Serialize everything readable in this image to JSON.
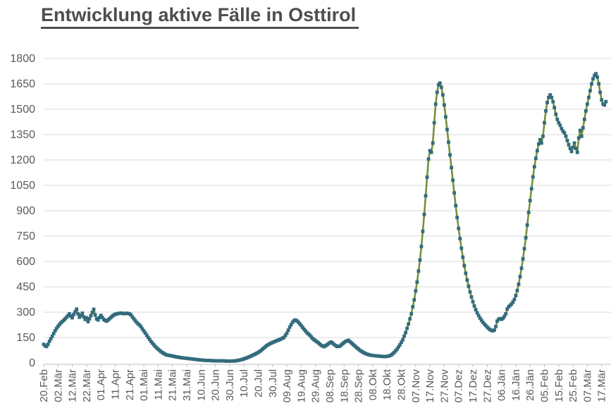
{
  "chart_data": {
    "type": "line",
    "title": "Entwicklung aktive Fälle in Osttirol",
    "title_color": "#4e4e4e",
    "legend_position": "none",
    "grid": "horizontal",
    "gridline_color": "#d9d9d9",
    "axis_line_color": "#bfbfbf",
    "axis_label_color": "#595959",
    "ylim": [
      0,
      1800
    ],
    "y_ticks": [
      0,
      150,
      300,
      450,
      600,
      750,
      900,
      1050,
      1200,
      1350,
      1500,
      1650,
      1800
    ],
    "x_tick_interval_days": 10,
    "x_tick_labels": [
      "20.Feb",
      "02.Mär",
      "12.Mär",
      "22.Mär",
      "01.Apr",
      "11.Apr",
      "21.Apr",
      "01.Mai",
      "11.Mai",
      "21.Mai",
      "31.Mai",
      "10.Jun",
      "20.Jun",
      "30.Jun",
      "10.Jul",
      "20.Jul",
      "30.Jul",
      "09.Aug",
      "19.Aug",
      "29.Aug",
      "08.Sep",
      "18.Sep",
      "28.Sep",
      "08.Okt",
      "18.Okt",
      "28.Okt",
      "07.Nov",
      "17.Nov",
      "27.Nov",
      "07.Dez",
      "17.Dez",
      "27.Dez",
      "06.Jän",
      "16.Jän",
      "26.Jän",
      "05.Feb",
      "15.Feb",
      "25.Feb",
      "07.Mär",
      "17.Mär"
    ],
    "series": [
      {
        "marker": "square",
        "marker_color": "#336b7d",
        "line_color": "#74923b",
        "points_day_value": [
          [
            0,
            110
          ],
          [
            1,
            101
          ],
          [
            2,
            97
          ],
          [
            3,
            110
          ],
          [
            4,
            128
          ],
          [
            5,
            143
          ],
          [
            6,
            158
          ],
          [
            7,
            174
          ],
          [
            8,
            190
          ],
          [
            9,
            204
          ],
          [
            10,
            216
          ],
          [
            11,
            227
          ],
          [
            12,
            237
          ],
          [
            13,
            245
          ],
          [
            14,
            252
          ],
          [
            15,
            261
          ],
          [
            16,
            270
          ],
          [
            17,
            280
          ],
          [
            18,
            290
          ],
          [
            19,
            277
          ],
          [
            20,
            267
          ],
          [
            21,
            287
          ],
          [
            22,
            303
          ],
          [
            23,
            318
          ],
          [
            24,
            290
          ],
          [
            25,
            270
          ],
          [
            26,
            281
          ],
          [
            27,
            294
          ],
          [
            28,
            272
          ],
          [
            29,
            257
          ],
          [
            30,
            267
          ],
          [
            31,
            244
          ],
          [
            32,
            261
          ],
          [
            33,
            280
          ],
          [
            34,
            299
          ],
          [
            35,
            317
          ],
          [
            36,
            284
          ],
          [
            37,
            261
          ],
          [
            38,
            254
          ],
          [
            39,
            269
          ],
          [
            40,
            281
          ],
          [
            41,
            269
          ],
          [
            42,
            257
          ],
          [
            43,
            251
          ],
          [
            44,
            247
          ],
          [
            45,
            254
          ],
          [
            46,
            261
          ],
          [
            47,
            269
          ],
          [
            48,
            277
          ],
          [
            49,
            283
          ],
          [
            50,
            287
          ],
          [
            51,
            290
          ],
          [
            52,
            292
          ],
          [
            54,
            295
          ],
          [
            56,
            291
          ],
          [
            58,
            294
          ],
          [
            60,
            290
          ],
          [
            61,
            284
          ],
          [
            62,
            272
          ],
          [
            63,
            261
          ],
          [
            64,
            250
          ],
          [
            65,
            240
          ],
          [
            66,
            231
          ],
          [
            67,
            224
          ],
          [
            68,
            214
          ],
          [
            69,
            201
          ],
          [
            70,
            189
          ],
          [
            71,
            177
          ],
          [
            72,
            164
          ],
          [
            73,
            151
          ],
          [
            74,
            139
          ],
          [
            75,
            127
          ],
          [
            76,
            117
          ],
          [
            77,
            107
          ],
          [
            78,
            97
          ],
          [
            79,
            89
          ],
          [
            80,
            81
          ],
          [
            81,
            74
          ],
          [
            82,
            67
          ],
          [
            83,
            61
          ],
          [
            84,
            56
          ],
          [
            85,
            51
          ],
          [
            86,
            47
          ],
          [
            88,
            44
          ],
          [
            90,
            41
          ],
          [
            92,
            37
          ],
          [
            94,
            34
          ],
          [
            96,
            31
          ],
          [
            98,
            29
          ],
          [
            100,
            27
          ],
          [
            102,
            25
          ],
          [
            104,
            23
          ],
          [
            106,
            21
          ],
          [
            108,
            19
          ],
          [
            110,
            17
          ],
          [
            113,
            15
          ],
          [
            116,
            14
          ],
          [
            119,
            13
          ],
          [
            122,
            12
          ],
          [
            125,
            12
          ],
          [
            128,
            11
          ],
          [
            131,
            11
          ],
          [
            134,
            12
          ],
          [
            136,
            15
          ],
          [
            138,
            19
          ],
          [
            140,
            24
          ],
          [
            142,
            30
          ],
          [
            144,
            37
          ],
          [
            146,
            45
          ],
          [
            148,
            53
          ],
          [
            150,
            62
          ],
          [
            152,
            74
          ],
          [
            154,
            89
          ],
          [
            156,
            103
          ],
          [
            158,
            113
          ],
          [
            160,
            121
          ],
          [
            162,
            128
          ],
          [
            164,
            135
          ],
          [
            166,
            142
          ],
          [
            168,
            151
          ],
          [
            170,
            176
          ],
          [
            172,
            212
          ],
          [
            174,
            241
          ],
          [
            175,
            250
          ],
          [
            176,
            254
          ],
          [
            177,
            249
          ],
          [
            178,
            241
          ],
          [
            180,
            221
          ],
          [
            182,
            199
          ],
          [
            184,
            179
          ],
          [
            186,
            164
          ],
          [
            188,
            144
          ],
          [
            190,
            131
          ],
          [
            192,
            119
          ],
          [
            194,
            104
          ],
          [
            196,
            96
          ],
          [
            198,
            107
          ],
          [
            200,
            119
          ],
          [
            201,
            124
          ],
          [
            203,
            109
          ],
          [
            205,
            97
          ],
          [
            207,
            99
          ],
          [
            209,
            114
          ],
          [
            211,
            127
          ],
          [
            213,
            134
          ],
          [
            215,
            119
          ],
          [
            217,
            104
          ],
          [
            219,
            89
          ],
          [
            221,
            75
          ],
          [
            223,
            64
          ],
          [
            225,
            55
          ],
          [
            227,
            49
          ],
          [
            229,
            45
          ],
          [
            231,
            43
          ],
          [
            233,
            41
          ],
          [
            235,
            40
          ],
          [
            237,
            38
          ],
          [
            239,
            38
          ],
          [
            241,
            40
          ],
          [
            243,
            47
          ],
          [
            245,
            62
          ],
          [
            247,
            81
          ],
          [
            249,
            107
          ],
          [
            251,
            137
          ],
          [
            253,
            179
          ],
          [
            255,
            230
          ],
          [
            257,
            291
          ],
          [
            259,
            373
          ],
          [
            261,
            478
          ],
          [
            263,
            608
          ],
          [
            264,
            688
          ],
          [
            265,
            778
          ],
          [
            266,
            878
          ],
          [
            267,
            988
          ],
          [
            268,
            1098
          ],
          [
            269,
            1205
          ],
          [
            270,
            1255
          ],
          [
            271,
            1245
          ],
          [
            272,
            1300
          ],
          [
            273,
            1420
          ],
          [
            274,
            1530
          ],
          [
            275,
            1600
          ],
          [
            276,
            1645
          ],
          [
            277,
            1655
          ],
          [
            278,
            1630
          ],
          [
            279,
            1585
          ],
          [
            280,
            1525
          ],
          [
            281,
            1455
          ],
          [
            282,
            1380
          ],
          [
            283,
            1305
          ],
          [
            284,
            1230
          ],
          [
            285,
            1155
          ],
          [
            286,
            1080
          ],
          [
            287,
            1005
          ],
          [
            288,
            930
          ],
          [
            289,
            860
          ],
          [
            290,
            795
          ],
          [
            291,
            735
          ],
          [
            292,
            678
          ],
          [
            293,
            625
          ],
          [
            294,
            575
          ],
          [
            295,
            530
          ],
          [
            296,
            490
          ],
          [
            297,
            453
          ],
          [
            298,
            420
          ],
          [
            299,
            390
          ],
          [
            300,
            362
          ],
          [
            301,
            337
          ],
          [
            302,
            315
          ],
          [
            303,
            296
          ],
          [
            304,
            280
          ],
          [
            305,
            265
          ],
          [
            306,
            252
          ],
          [
            307,
            240
          ],
          [
            308,
            230
          ],
          [
            309,
            221
          ],
          [
            310,
            212
          ],
          [
            311,
            204
          ],
          [
            312,
            197
          ],
          [
            313,
            192
          ],
          [
            314,
            190
          ],
          [
            315,
            194
          ],
          [
            316,
            215
          ],
          [
            317,
            247
          ],
          [
            318,
            258
          ],
          [
            319,
            262
          ],
          [
            320,
            258
          ],
          [
            321,
            263
          ],
          [
            322,
            275
          ],
          [
            323,
            290
          ],
          [
            324,
            318
          ],
          [
            325,
            332
          ],
          [
            326,
            340
          ],
          [
            327,
            348
          ],
          [
            328,
            360
          ],
          [
            329,
            375
          ],
          [
            330,
            398
          ],
          [
            331,
            428
          ],
          [
            332,
            465
          ],
          [
            333,
            510
          ],
          [
            334,
            560
          ],
          [
            335,
            615
          ],
          [
            336,
            675
          ],
          [
            337,
            740
          ],
          [
            338,
            815
          ],
          [
            339,
            890
          ],
          [
            340,
            960
          ],
          [
            341,
            1030
          ],
          [
            342,
            1100
          ],
          [
            343,
            1160
          ],
          [
            344,
            1210
          ],
          [
            345,
            1255
          ],
          [
            346,
            1295
          ],
          [
            347,
            1320
          ],
          [
            348,
            1300
          ],
          [
            349,
            1340
          ],
          [
            350,
            1420
          ],
          [
            351,
            1490
          ],
          [
            352,
            1540
          ],
          [
            353,
            1570
          ],
          [
            354,
            1585
          ],
          [
            355,
            1570
          ],
          [
            356,
            1545
          ],
          [
            357,
            1510
          ],
          [
            358,
            1470
          ],
          [
            359,
            1440
          ],
          [
            360,
            1420
          ],
          [
            361,
            1405
          ],
          [
            362,
            1385
          ],
          [
            363,
            1370
          ],
          [
            364,
            1360
          ],
          [
            365,
            1340
          ],
          [
            366,
            1315
          ],
          [
            367,
            1290
          ],
          [
            368,
            1268
          ],
          [
            369,
            1250
          ],
          [
            370,
            1275
          ],
          [
            371,
            1300
          ],
          [
            372,
            1268
          ],
          [
            373,
            1245
          ],
          [
            374,
            1330
          ],
          [
            375,
            1375
          ],
          [
            376,
            1340
          ],
          [
            377,
            1390
          ],
          [
            378,
            1440
          ],
          [
            379,
            1490
          ],
          [
            380,
            1530
          ],
          [
            381,
            1570
          ],
          [
            382,
            1610
          ],
          [
            383,
            1650
          ],
          [
            384,
            1680
          ],
          [
            385,
            1700
          ],
          [
            386,
            1710
          ],
          [
            387,
            1690
          ],
          [
            388,
            1650
          ],
          [
            389,
            1600
          ],
          [
            390,
            1555
          ],
          [
            391,
            1530
          ],
          [
            392,
            1525
          ],
          [
            393,
            1545
          ]
        ]
      }
    ]
  }
}
